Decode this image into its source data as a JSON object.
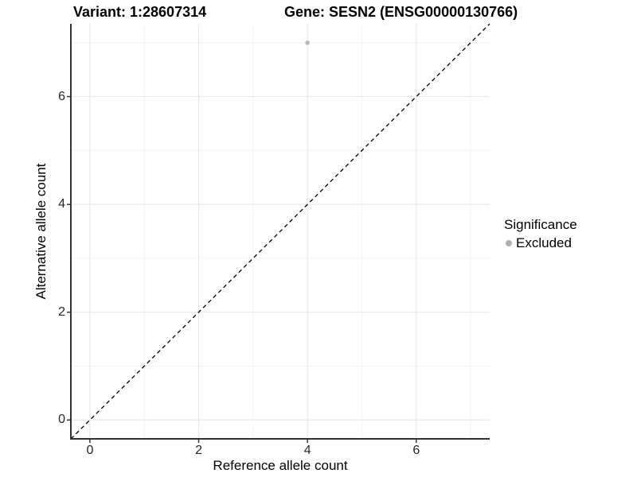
{
  "titles": {
    "variant": "Variant: 1:28607314",
    "gene": "Gene: SESN2 (ENSG00000130766)"
  },
  "axes": {
    "x_label": "Reference allele count",
    "y_label": "Alternative allele count"
  },
  "legend": {
    "title": "Significance",
    "items": [
      {
        "label": "Excluded",
        "color": "#b0b0b0"
      }
    ]
  },
  "colors": {
    "background": "#ffffff",
    "grid_major": "#e8e8e8",
    "grid_minor": "#f4f4f4",
    "axis_line": "#333333",
    "tick_mark": "#333333",
    "reference_line": "#000000",
    "point": "#b8b8b8"
  },
  "chart_data": {
    "type": "scatter",
    "title": "Variant: 1:28607314   Gene: SESN2 (ENSG00000130766)",
    "xlabel": "Reference allele count",
    "ylabel": "Alternative allele count",
    "xlim": [
      -0.35,
      7.35
    ],
    "ylim": [
      -0.35,
      7.35
    ],
    "x_ticks": [
      0,
      2,
      4,
      6
    ],
    "y_ticks": [
      0,
      2,
      4,
      6
    ],
    "x_minor_ticks": [
      1,
      3,
      5,
      7
    ],
    "y_minor_ticks": [
      1,
      3,
      5,
      7
    ],
    "grid": "major-and-minor",
    "legend_position": "right",
    "reference_line": {
      "kind": "identity",
      "equation": "y = x",
      "style": "dashed"
    },
    "series": [
      {
        "name": "Excluded",
        "color": "#b8b8b8",
        "points": [
          {
            "x": 4,
            "y": 7
          }
        ]
      }
    ]
  }
}
